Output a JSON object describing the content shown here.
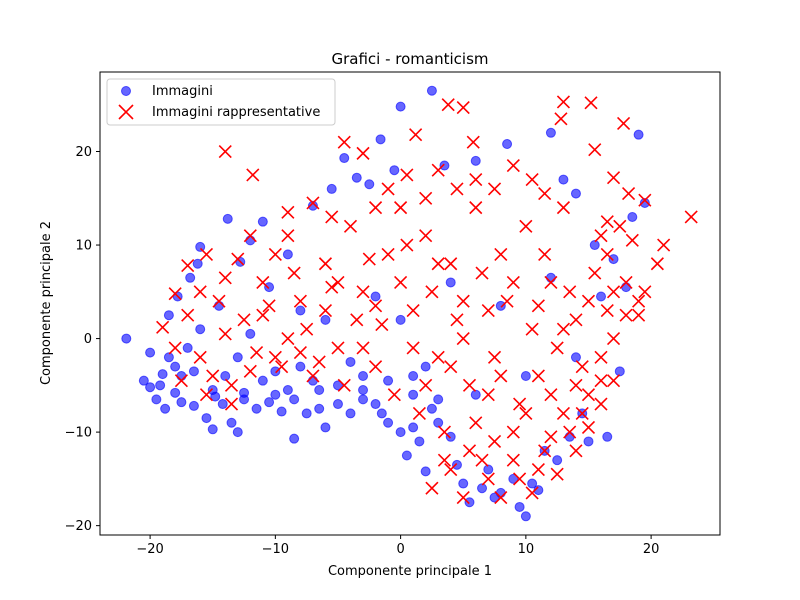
{
  "chart_data": {
    "type": "scatter",
    "title": "Grafici - romanticism",
    "xlabel": "Componente principale 1",
    "ylabel": "Componente principale 2",
    "xlim": [
      -24.0,
      25.5
    ],
    "ylim": [
      -21.0,
      28.5
    ],
    "xticks": [
      -20,
      -10,
      0,
      10,
      20
    ],
    "yticks": [
      -20,
      -10,
      0,
      10,
      20
    ],
    "xtick_labels": [
      "−20",
      "−10",
      "0",
      "10",
      "20"
    ],
    "ytick_labels": [
      "−20",
      "−10",
      "0",
      "10",
      "20"
    ],
    "grid": false,
    "legend_position": "top-left",
    "series": [
      {
        "name": "Immagini",
        "marker": "circle",
        "color": "#0000ff",
        "alpha": 0.6,
        "points": [
          [
            -21.9,
            0.0
          ],
          [
            -20.5,
            -4.5
          ],
          [
            -20.0,
            -1.5
          ],
          [
            -19.5,
            -6.5
          ],
          [
            -19.2,
            -5.0
          ],
          [
            -18.8,
            -7.5
          ],
          [
            -18.5,
            2.5
          ],
          [
            -18.0,
            -3.0
          ],
          [
            -17.8,
            4.5
          ],
          [
            -17.5,
            -6.8
          ],
          [
            -17.0,
            -1.0
          ],
          [
            -16.8,
            6.5
          ],
          [
            -16.5,
            -7.2
          ],
          [
            -16.2,
            8.0
          ],
          [
            -16.0,
            9.8
          ],
          [
            -15.5,
            -8.5
          ],
          [
            -15.0,
            -9.7
          ],
          [
            -14.5,
            3.5
          ],
          [
            -14.2,
            -7.0
          ],
          [
            -13.8,
            12.8
          ],
          [
            -13.5,
            -9.0
          ],
          [
            -13.0,
            -10.0
          ],
          [
            -12.8,
            8.2
          ],
          [
            -12.5,
            -6.5
          ],
          [
            -12.0,
            10.5
          ],
          [
            -11.5,
            -7.5
          ],
          [
            -11.0,
            12.5
          ],
          [
            -10.5,
            5.5
          ],
          [
            -10.0,
            -6.0
          ],
          [
            -9.5,
            -7.8
          ],
          [
            -9.0,
            9.0
          ],
          [
            -8.5,
            -10.7
          ],
          [
            -8.0,
            3.0
          ],
          [
            -7.5,
            -8.0
          ],
          [
            -7.0,
            14.2
          ],
          [
            -6.5,
            -7.5
          ],
          [
            -6.0,
            -9.5
          ],
          [
            -5.5,
            16.0
          ],
          [
            -5.0,
            -7.0
          ],
          [
            -4.5,
            19.3
          ],
          [
            -4.0,
            -8.0
          ],
          [
            -3.5,
            17.2
          ],
          [
            -3.0,
            -6.5
          ],
          [
            -2.5,
            16.5
          ],
          [
            -2.0,
            -7.0
          ],
          [
            -1.6,
            21.3
          ],
          [
            -1.5,
            -8.0
          ],
          [
            -1.0,
            -9.0
          ],
          [
            -0.5,
            18.0
          ],
          [
            0.0,
            24.8
          ],
          [
            0.0,
            -10.0
          ],
          [
            0.5,
            -12.5
          ],
          [
            1.0,
            -9.5
          ],
          [
            1.5,
            -11.0
          ],
          [
            2.0,
            -14.2
          ],
          [
            2.5,
            -7.5
          ],
          [
            3.0,
            -9.0
          ],
          [
            3.5,
            18.5
          ],
          [
            4.0,
            -10.5
          ],
          [
            4.5,
            -13.5
          ],
          [
            5.0,
            -15.5
          ],
          [
            5.5,
            -17.5
          ],
          [
            6.0,
            19.0
          ],
          [
            6.5,
            -16.0
          ],
          [
            7.0,
            -14.0
          ],
          [
            7.5,
            -17.0
          ],
          [
            8.0,
            -16.5
          ],
          [
            8.5,
            20.8
          ],
          [
            9.0,
            -15.0
          ],
          [
            9.5,
            -18.0
          ],
          [
            10.0,
            -19.0
          ],
          [
            10.5,
            -15.5
          ],
          [
            11.0,
            -16.2
          ],
          [
            11.5,
            -12.0
          ],
          [
            12.0,
            22.0
          ],
          [
            12.5,
            -13.0
          ],
          [
            13.0,
            17.0
          ],
          [
            13.5,
            -10.5
          ],
          [
            14.0,
            15.5
          ],
          [
            14.5,
            -8.0
          ],
          [
            15.0,
            -11.0
          ],
          [
            15.5,
            10.0
          ],
          [
            16.0,
            4.5
          ],
          [
            16.5,
            -10.5
          ],
          [
            17.0,
            8.5
          ],
          [
            17.5,
            -3.5
          ],
          [
            18.0,
            5.5
          ],
          [
            18.5,
            13.0
          ],
          [
            19.0,
            21.8
          ],
          [
            19.5,
            14.5
          ],
          [
            2.5,
            26.5
          ],
          [
            -8.0,
            -3.0
          ],
          [
            -6.0,
            2.0
          ],
          [
            -4.0,
            -2.5
          ],
          [
            -2.0,
            4.5
          ],
          [
            0.0,
            2.0
          ],
          [
            2.0,
            -3.0
          ],
          [
            4.0,
            6.0
          ],
          [
            6.0,
            -6.0
          ],
          [
            8.0,
            3.5
          ],
          [
            10.0,
            -4.0
          ],
          [
            12.0,
            6.5
          ],
          [
            14.0,
            -2.0
          ],
          [
            -14.0,
            -4.0
          ],
          [
            -12.0,
            0.5
          ],
          [
            -10.0,
            -3.5
          ],
          [
            -16.0,
            1.0
          ],
          [
            -18.5,
            -2.0
          ],
          [
            -3.0,
            -5.5
          ],
          [
            1.0,
            -6.0
          ],
          [
            -15.0,
            -5.5
          ],
          [
            -13.0,
            -2.0
          ],
          [
            -11.0,
            -4.5
          ],
          [
            -9.0,
            -5.5
          ],
          [
            -7.0,
            -4.5
          ],
          [
            -5.0,
            -5.0
          ],
          [
            -3.0,
            -4.0
          ],
          [
            -1.0,
            -4.5
          ],
          [
            1.0,
            -4.0
          ],
          [
            3.0,
            -6.5
          ],
          [
            -17.5,
            -4.0
          ],
          [
            -16.5,
            -3.5
          ],
          [
            -19.0,
            -3.8
          ],
          [
            -20.0,
            -5.2
          ],
          [
            -18.0,
            -5.8
          ],
          [
            -14.8,
            -6.2
          ],
          [
            -12.5,
            -5.8
          ],
          [
            -10.5,
            -6.8
          ],
          [
            -8.5,
            -6.5
          ],
          [
            -6.5,
            -5.5
          ]
        ]
      },
      {
        "name": "Immagini rappresentative",
        "marker": "x",
        "color": "#ff0000",
        "points": [
          [
            -14.0,
            20.0
          ],
          [
            -11.8,
            17.5
          ],
          [
            -4.5,
            21.0
          ],
          [
            -3.0,
            19.8
          ],
          [
            1.2,
            21.8
          ],
          [
            3.8,
            25.0
          ],
          [
            5.0,
            24.7
          ],
          [
            5.8,
            21.0
          ],
          [
            13.0,
            25.3
          ],
          [
            15.2,
            25.2
          ],
          [
            12.8,
            23.5
          ],
          [
            17.8,
            23.0
          ],
          [
            23.2,
            13.0
          ],
          [
            21.0,
            10.0
          ],
          [
            20.5,
            8.0
          ],
          [
            19.5,
            14.8
          ],
          [
            18.2,
            15.5
          ],
          [
            15.5,
            20.2
          ],
          [
            -19.0,
            1.2
          ],
          [
            -18.0,
            4.8
          ],
          [
            -17.0,
            7.8
          ],
          [
            -15.5,
            9.0
          ],
          [
            -13.5,
            -5.0
          ],
          [
            -12.5,
            2.0
          ],
          [
            -11.0,
            6.0
          ],
          [
            -10.0,
            -2.0
          ],
          [
            -9.0,
            11.0
          ],
          [
            -8.0,
            4.0
          ],
          [
            -7.0,
            -4.0
          ],
          [
            -6.0,
            8.0
          ],
          [
            -5.0,
            -1.0
          ],
          [
            -4.0,
            12.0
          ],
          [
            -3.0,
            5.0
          ],
          [
            -2.0,
            -3.0
          ],
          [
            -1.0,
            9.0
          ],
          [
            0.0,
            14.0
          ],
          [
            1.0,
            3.0
          ],
          [
            2.0,
            11.0
          ],
          [
            3.0,
            -2.0
          ],
          [
            4.0,
            8.0
          ],
          [
            5.0,
            0.0
          ],
          [
            6.0,
            14.0
          ],
          [
            7.0,
            -6.0
          ],
          [
            8.0,
            9.0
          ],
          [
            9.0,
            -10.0
          ],
          [
            10.0,
            12.0
          ],
          [
            11.0,
            -4.0
          ],
          [
            12.0,
            6.0
          ],
          [
            13.0,
            -8.0
          ],
          [
            14.0,
            2.0
          ],
          [
            15.0,
            -6.0
          ],
          [
            16.0,
            11.0
          ],
          [
            17.0,
            0.0
          ],
          [
            18.0,
            6.0
          ],
          [
            19.0,
            2.5
          ],
          [
            2.5,
            -16.0
          ],
          [
            4.0,
            -14.0
          ],
          [
            5.5,
            -12.0
          ],
          [
            7.0,
            -15.0
          ],
          [
            8.0,
            -17.0
          ],
          [
            9.0,
            -13.0
          ],
          [
            10.5,
            -16.5
          ],
          [
            11.5,
            -12.0
          ],
          [
            12.5,
            -14.5
          ],
          [
            13.5,
            -10.0
          ],
          [
            14.5,
            -8.0
          ],
          [
            15.0,
            -9.5
          ],
          [
            16.0,
            -4.5
          ],
          [
            -16.0,
            -2.0
          ],
          [
            -14.5,
            4.0
          ],
          [
            -13.0,
            8.5
          ],
          [
            -11.5,
            -1.5
          ],
          [
            -10.5,
            3.5
          ],
          [
            -9.5,
            -3.0
          ],
          [
            -8.5,
            7.0
          ],
          [
            -7.5,
            1.0
          ],
          [
            -6.5,
            -2.5
          ],
          [
            -5.5,
            5.5
          ],
          [
            -4.5,
            -5.0
          ],
          [
            -3.5,
            2.0
          ],
          [
            -2.5,
            8.5
          ],
          [
            -1.5,
            1.5
          ],
          [
            -0.5,
            -6.0
          ],
          [
            0.5,
            10.0
          ],
          [
            1.5,
            -8.0
          ],
          [
            2.5,
            5.0
          ],
          [
            3.5,
            -10.0
          ],
          [
            4.5,
            2.0
          ],
          [
            5.5,
            -5.0
          ],
          [
            6.5,
            7.0
          ],
          [
            7.5,
            -2.0
          ],
          [
            8.5,
            4.0
          ],
          [
            9.5,
            -7.0
          ],
          [
            10.5,
            1.0
          ],
          [
            11.5,
            9.0
          ],
          [
            12.5,
            -1.0
          ],
          [
            13.5,
            5.0
          ],
          [
            14.5,
            -3.0
          ],
          [
            15.5,
            7.0
          ],
          [
            16.5,
            3.0
          ],
          [
            -18.0,
            -1.0
          ],
          [
            -17.0,
            2.5
          ],
          [
            -15.0,
            -4.0
          ],
          [
            -14.0,
            0.5
          ],
          [
            -12.0,
            -3.5
          ],
          [
            -11.0,
            2.5
          ],
          [
            -9.0,
            0.0
          ],
          [
            -8.0,
            -1.5
          ],
          [
            -6.0,
            3.0
          ],
          [
            -5.0,
            6.0
          ],
          [
            -3.0,
            -1.0
          ],
          [
            -2.0,
            3.5
          ],
          [
            0.0,
            6.0
          ],
          [
            1.0,
            -1.0
          ],
          [
            2.0,
            -5.0
          ],
          [
            3.0,
            8.0
          ],
          [
            4.0,
            -3.0
          ],
          [
            5.0,
            4.0
          ],
          [
            6.0,
            -9.0
          ],
          [
            7.0,
            3.0
          ],
          [
            8.0,
            -4.0
          ],
          [
            9.0,
            6.0
          ],
          [
            10.0,
            -8.0
          ],
          [
            11.0,
            3.5
          ],
          [
            12.0,
            -6.0
          ],
          [
            13.0,
            1.0
          ],
          [
            14.0,
            -5.0
          ],
          [
            15.0,
            4.0
          ],
          [
            16.0,
            -2.0
          ],
          [
            17.0,
            5.0
          ],
          [
            0.5,
            17.5
          ],
          [
            2.0,
            15.0
          ],
          [
            3.0,
            18.0
          ],
          [
            4.5,
            16.0
          ],
          [
            6.0,
            17.0
          ],
          [
            7.5,
            16.0
          ],
          [
            9.0,
            18.5
          ],
          [
            10.5,
            17.0
          ],
          [
            11.5,
            15.5
          ],
          [
            13.0,
            14.0
          ],
          [
            -2.0,
            14.0
          ],
          [
            -1.0,
            16.0
          ],
          [
            -5.5,
            13.0
          ],
          [
            -7.0,
            14.5
          ],
          [
            -9.0,
            13.5
          ],
          [
            -10.0,
            9.0
          ],
          [
            -12.0,
            11.0
          ],
          [
            -14.0,
            6.5
          ],
          [
            -16.0,
            5.0
          ],
          [
            -17.5,
            -4.5
          ],
          [
            -15.5,
            -6.0
          ],
          [
            -13.5,
            -7.0
          ],
          [
            3.5,
            -13.0
          ],
          [
            5.0,
            -17.0
          ],
          [
            6.5,
            -13.0
          ],
          [
            7.5,
            -11.0
          ],
          [
            9.5,
            -15.0
          ],
          [
            11.0,
            -14.0
          ],
          [
            12.0,
            -10.5
          ],
          [
            14.0,
            -12.0
          ],
          [
            16.5,
            9.0
          ],
          [
            17.5,
            12.0
          ],
          [
            18.5,
            10.5
          ],
          [
            19.0,
            4.0
          ],
          [
            19.5,
            5.0
          ],
          [
            18.0,
            2.5
          ],
          [
            17.0,
            -4.5
          ],
          [
            16.0,
            -7.0
          ],
          [
            16.5,
            12.5
          ],
          [
            17.0,
            17.2
          ]
        ]
      }
    ]
  }
}
